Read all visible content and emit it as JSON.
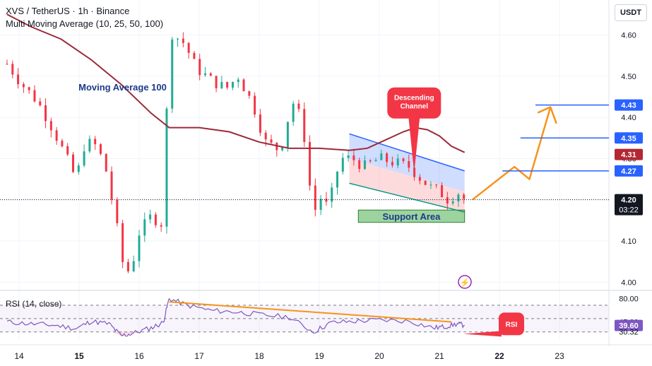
{
  "header": {
    "title": "XVS / TetherUS · 1h · Binance",
    "indicator": "Multi Moving Average (10, 25, 50, 100)"
  },
  "currency": "USDT",
  "colors": {
    "up": "#22ab94",
    "down": "#f23645",
    "ma100": "#9c2a3a",
    "rsi": "#7e57c2",
    "channel_top": "#2962ff",
    "channel_bottom": "#089981",
    "projection": "#f7931a",
    "level": "#2962ff",
    "label_red": "#f23645",
    "support_fill": "#4caf50"
  },
  "chart_data": {
    "type": "candlestick",
    "main": {
      "price_axis": {
        "ticks": [
          4.6,
          4.5,
          4.4,
          4.3,
          4.1,
          4.0
        ],
        "ylim": [
          3.985,
          4.685
        ]
      },
      "time_axis": {
        "labels": [
          {
            "text": "14",
            "bold": false
          },
          {
            "text": "15",
            "bold": true
          },
          {
            "text": "16",
            "bold": false
          },
          {
            "text": "17",
            "bold": false
          },
          {
            "text": "18",
            "bold": false
          },
          {
            "text": "19",
            "bold": false
          },
          {
            "text": "20",
            "bold": false
          },
          {
            "text": "21",
            "bold": false
          },
          {
            "text": "22",
            "bold": true
          },
          {
            "text": "23",
            "bold": false
          }
        ],
        "day_index": [
          14,
          15,
          16,
          17,
          18,
          19,
          20,
          21,
          22,
          23
        ]
      },
      "price_path": [
        [
          13.8,
          4.53
        ],
        [
          14.05,
          4.48
        ],
        [
          14.3,
          4.44
        ],
        [
          14.5,
          4.39
        ],
        [
          14.7,
          4.33
        ],
        [
          14.95,
          4.25
        ],
        [
          15.1,
          4.34
        ],
        [
          15.3,
          4.33
        ],
        [
          15.45,
          4.27
        ],
        [
          15.6,
          4.16
        ],
        [
          15.72,
          4.05
        ],
        [
          15.85,
          4.02
        ],
        [
          16.0,
          4.12
        ],
        [
          16.2,
          4.16
        ],
        [
          16.4,
          4.14
        ],
        [
          16.5,
          4.61
        ],
        [
          16.75,
          4.58
        ],
        [
          16.95,
          4.52
        ],
        [
          17.2,
          4.49
        ],
        [
          17.45,
          4.47
        ],
        [
          17.65,
          4.5
        ],
        [
          17.9,
          4.43
        ],
        [
          18.1,
          4.34
        ],
        [
          18.35,
          4.32
        ],
        [
          18.55,
          4.44
        ],
        [
          18.72,
          4.39
        ],
        [
          18.9,
          4.16
        ],
        [
          19.0,
          4.21
        ],
        [
          19.15,
          4.18
        ],
        [
          19.35,
          4.3
        ],
        [
          19.55,
          4.3
        ],
        [
          19.75,
          4.28
        ],
        [
          20.0,
          4.3
        ],
        [
          20.25,
          4.29
        ],
        [
          20.5,
          4.28
        ],
        [
          20.7,
          4.25
        ],
        [
          20.85,
          4.23
        ],
        [
          21.0,
          4.22
        ],
        [
          21.15,
          4.2
        ],
        [
          21.3,
          4.22
        ],
        [
          21.42,
          4.2
        ]
      ],
      "ma100": [
        [
          13.8,
          4.65
        ],
        [
          14.2,
          4.62
        ],
        [
          14.7,
          4.59
        ],
        [
          15.2,
          4.54
        ],
        [
          15.7,
          4.48
        ],
        [
          16.2,
          4.41
        ],
        [
          16.5,
          4.375
        ],
        [
          17.0,
          4.375
        ],
        [
          17.5,
          4.365
        ],
        [
          18.0,
          4.34
        ],
        [
          18.5,
          4.325
        ],
        [
          19.0,
          4.325
        ],
        [
          19.5,
          4.32
        ],
        [
          19.8,
          4.325
        ],
        [
          20.1,
          4.345
        ],
        [
          20.4,
          4.365
        ],
        [
          20.6,
          4.375
        ],
        [
          20.8,
          4.37
        ],
        [
          21.0,
          4.355
        ],
        [
          21.2,
          4.33
        ],
        [
          21.42,
          4.315
        ]
      ],
      "last_price": 4.2,
      "price_labels": [
        {
          "text": "4.43",
          "value": 4.43,
          "color": "#2962ff"
        },
        {
          "text": "4.35",
          "value": 4.35,
          "color": "#2962ff"
        },
        {
          "text": "4.31",
          "value": 4.31,
          "color": "#b22833"
        },
        {
          "text": "4.27",
          "value": 4.27,
          "color": "#2962ff"
        },
        {
          "text": "4.20",
          "value": 4.2,
          "color": "#131722",
          "countdown": "03:22"
        }
      ],
      "levels": [
        {
          "value": 4.43,
          "x_from": 22.6,
          "x_to": 23.98
        },
        {
          "value": 4.35,
          "x_from": 22.35,
          "x_to": 23.98
        },
        {
          "value": 4.27,
          "x_from": 22.05,
          "x_to": 23.98
        }
      ],
      "channel": {
        "top": [
          [
            19.5,
            4.36
          ],
          [
            21.42,
            4.27
          ]
        ],
        "bottom": [
          [
            19.5,
            4.24
          ],
          [
            21.42,
            4.17
          ]
        ]
      },
      "support_area": {
        "x": [
          19.65,
          21.42
        ],
        "y": [
          4.145,
          4.175
        ],
        "label": "Support Area"
      },
      "projection": [
        [
          21.55,
          4.2
        ],
        [
          22.25,
          4.28
        ],
        [
          22.5,
          4.25
        ],
        [
          22.85,
          4.425
        ],
        [
          22.95,
          4.385
        ]
      ],
      "annotations": [
        {
          "text": "Moving Average 100",
          "x": 14.9,
          "y": 4.465
        },
        {
          "text": "Descending Channel",
          "x": 20.58,
          "y": 4.435,
          "pointer_to": [
            20.58,
            4.265
          ]
        }
      ],
      "logo_glyph": "⚡"
    },
    "rsi": {
      "label": "RSI (14, close)",
      "ticks": [
        80.0,
        30.32
      ],
      "bands": {
        "upper": 70,
        "middle": 50,
        "lower": 30
      },
      "ylim": [
        17,
        88
      ],
      "labels": [
        {
          "text": "80.00",
          "value": 80.0,
          "style": "plain"
        },
        {
          "text": "45.00",
          "value": 45.0,
          "style": "plain"
        },
        {
          "text": "39.60",
          "value": 39.6,
          "style": "badge"
        },
        {
          "text": "30.32",
          "value": 30.32,
          "style": "plain"
        }
      ],
      "values": [
        [
          13.8,
          45
        ],
        [
          14.2,
          42
        ],
        [
          14.6,
          40
        ],
        [
          14.95,
          35
        ],
        [
          15.2,
          46
        ],
        [
          15.5,
          42
        ],
        [
          15.7,
          24
        ],
        [
          15.9,
          28
        ],
        [
          16.2,
          36
        ],
        [
          16.4,
          44
        ],
        [
          16.5,
          80
        ],
        [
          16.8,
          70
        ],
        [
          17.2,
          62
        ],
        [
          17.6,
          60
        ],
        [
          18.0,
          56
        ],
        [
          18.5,
          52
        ],
        [
          18.9,
          30
        ],
        [
          19.2,
          44
        ],
        [
          19.6,
          46
        ],
        [
          20.0,
          48
        ],
        [
          20.5,
          46
        ],
        [
          20.9,
          36
        ],
        [
          21.1,
          38
        ],
        [
          21.3,
          42
        ],
        [
          21.42,
          40
        ]
      ],
      "divergence": [
        [
          16.5,
          75.0
        ],
        [
          21.2,
          45.0
        ]
      ],
      "callout": {
        "text": "RSI",
        "x": 22.2,
        "y": 42.0,
        "pointer_to": [
          21.4,
          27.0
        ]
      }
    }
  }
}
